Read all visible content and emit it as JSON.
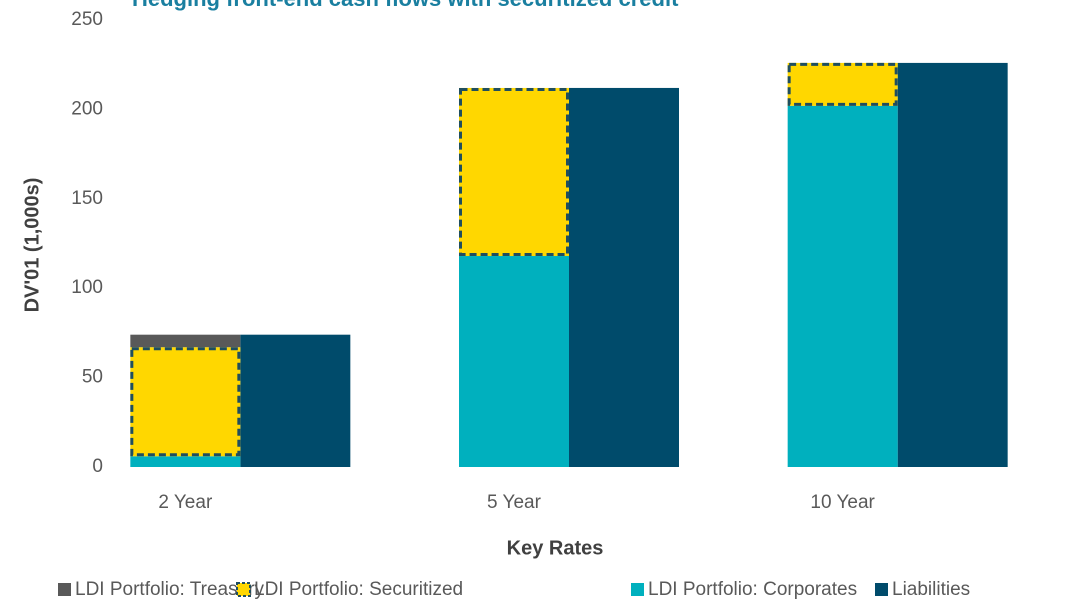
{
  "chart_data": {
    "type": "bar",
    "title": "Hedging front-end cash flows with securitized credit",
    "x_label": "Key Rates",
    "y_label": "DV'01 (1,000s)",
    "categories": [
      "2 Year",
      "5 Year",
      "10 Year"
    ],
    "series": [
      {
        "name": "LDI Portfolio: Treasury",
        "color": "#595959",
        "stack": 0,
        "values": [
          7,
          0,
          0
        ]
      },
      {
        "name": "LDI Portfolio: Securitized",
        "color": "#ffd700",
        "stack": 0,
        "dashed": true,
        "values": [
          61,
          94,
          24
        ]
      },
      {
        "name": "LDI Portfolio: Corporates",
        "color": "#00b0be",
        "stack": 0,
        "values": [
          6,
          118,
          202
        ]
      },
      {
        "name": "Liabilities",
        "color": "#004b6b",
        "stack": 1,
        "values": [
          74,
          212,
          226
        ]
      }
    ],
    "ylim": [
      0,
      250
    ],
    "yticks": [
      0,
      50,
      100,
      150,
      200,
      250
    ],
    "grid": false,
    "legend": "bottom"
  }
}
